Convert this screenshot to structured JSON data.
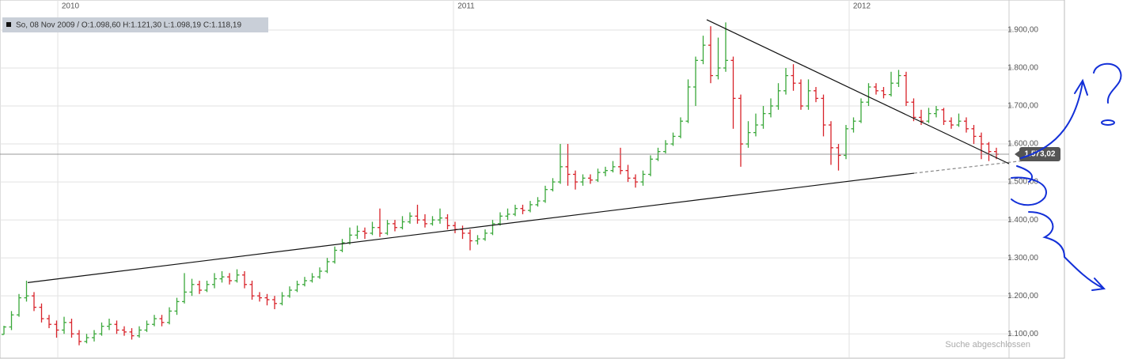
{
  "chart_data": {
    "type": "ohlc",
    "info": "So, 08 Nov 2009 / O:1.098,60 H:1.121,30 L:1.098,19 C:1.118,19",
    "status": "Suche abgeschlossen",
    "up_color": "#3aa83a",
    "down_color": "#d8222a",
    "xlim": [
      2009.854,
      2012.404
    ],
    "xticks": [
      2010,
      2011,
      2012
    ],
    "ylim": [
      1038,
      1979
    ],
    "yticks": [
      {
        "value": 1100,
        "label": "1.100,00"
      },
      {
        "value": 1200,
        "label": "1.200,00"
      },
      {
        "value": 1300,
        "label": "1.300,00"
      },
      {
        "value": 1400,
        "label": "1.400,00"
      },
      {
        "value": 1500,
        "label": "1.500,00"
      },
      {
        "value": 1600,
        "label": "1.600,00"
      },
      {
        "value": 1700,
        "label": "1.700,00"
      },
      {
        "value": 1800,
        "label": "1.800,00"
      },
      {
        "value": 1900,
        "label": "1.900,00"
      }
    ],
    "grid": true,
    "last_value": 1573.02,
    "last_label": "1.573,02",
    "x": [
      2009.864,
      2009.883,
      2009.902,
      2009.921,
      2009.94,
      2009.959,
      2009.978,
      2009.997,
      2010.016,
      2010.035,
      2010.054,
      2010.073,
      2010.092,
      2010.111,
      2010.13,
      2010.149,
      2010.168,
      2010.187,
      2010.206,
      2010.225,
      2010.244,
      2010.263,
      2010.282,
      2010.301,
      2010.32,
      2010.339,
      2010.358,
      2010.377,
      2010.396,
      2010.415,
      2010.434,
      2010.453,
      2010.472,
      2010.491,
      2010.51,
      2010.529,
      2010.548,
      2010.567,
      2010.586,
      2010.605,
      2010.624,
      2010.643,
      2010.662,
      2010.681,
      2010.7,
      2010.719,
      2010.738,
      2010.757,
      2010.776,
      2010.795,
      2010.814,
      2010.833,
      2010.852,
      2010.871,
      2010.89,
      2010.909,
      2010.928,
      2010.947,
      2010.966,
      2010.985,
      2011.004,
      2011.023,
      2011.042,
      2011.061,
      2011.08,
      2011.099,
      2011.118,
      2011.137,
      2011.156,
      2011.175,
      2011.194,
      2011.213,
      2011.232,
      2011.251,
      2011.27,
      2011.289,
      2011.308,
      2011.327,
      2011.346,
      2011.365,
      2011.384,
      2011.403,
      2011.422,
      2011.441,
      2011.46,
      2011.479,
      2011.498,
      2011.517,
      2011.536,
      2011.555,
      2011.574,
      2011.593,
      2011.612,
      2011.631,
      2011.65,
      2011.669,
      2011.688,
      2011.707,
      2011.726,
      2011.745,
      2011.764,
      2011.783,
      2011.802,
      2011.821,
      2011.84,
      2011.859,
      2011.878,
      2011.897,
      2011.916,
      2011.935,
      2011.954,
      2011.973,
      2011.992,
      2012.011,
      2012.03,
      2012.049,
      2012.068,
      2012.087,
      2012.106,
      2012.125,
      2012.144,
      2012.163,
      2012.182,
      2012.201,
      2012.22,
      2012.239,
      2012.258,
      2012.277,
      2012.296,
      2012.315,
      2012.334,
      2012.353,
      2012.372
    ],
    "open": [
      1098.6,
      1118.19,
      1150,
      1195,
      1200,
      1170,
      1140,
      1125,
      1110,
      1130,
      1100,
      1080,
      1090,
      1100,
      1120,
      1125,
      1110,
      1105,
      1095,
      1110,
      1125,
      1140,
      1130,
      1160,
      1185,
      1210,
      1230,
      1215,
      1230,
      1245,
      1250,
      1240,
      1255,
      1230,
      1200,
      1195,
      1190,
      1180,
      1200,
      1215,
      1230,
      1240,
      1250,
      1265,
      1290,
      1320,
      1340,
      1360,
      1370,
      1365,
      1380,
      1365,
      1390,
      1380,
      1395,
      1410,
      1400,
      1390,
      1400,
      1405,
      1385,
      1375,
      1365,
      1345,
      1350,
      1365,
      1390,
      1410,
      1415,
      1430,
      1425,
      1440,
      1450,
      1480,
      1500,
      1540,
      1520,
      1500,
      1510,
      1505,
      1525,
      1530,
      1540,
      1530,
      1510,
      1500,
      1520,
      1560,
      1580,
      1600,
      1620,
      1660,
      1750,
      1820,
      1860,
      1780,
      1800,
      1820,
      1720,
      1600,
      1630,
      1650,
      1680,
      1700,
      1740,
      1780,
      1760,
      1700,
      1740,
      1720,
      1650,
      1590,
      1570,
      1640,
      1660,
      1710,
      1750,
      1740,
      1730,
      1760,
      1780,
      1710,
      1670,
      1660,
      1680,
      1690,
      1660,
      1650,
      1660,
      1640,
      1620,
      1600,
      1580
    ],
    "high": [
      1121.3,
      1160,
      1205,
      1240,
      1210,
      1180,
      1150,
      1135,
      1145,
      1140,
      1110,
      1100,
      1110,
      1130,
      1140,
      1135,
      1120,
      1115,
      1120,
      1135,
      1150,
      1150,
      1170,
      1195,
      1260,
      1245,
      1240,
      1240,
      1260,
      1265,
      1260,
      1270,
      1265,
      1240,
      1210,
      1205,
      1200,
      1210,
      1225,
      1240,
      1250,
      1260,
      1275,
      1300,
      1330,
      1350,
      1380,
      1385,
      1380,
      1395,
      1430,
      1400,
      1400,
      1410,
      1420,
      1440,
      1415,
      1410,
      1430,
      1415,
      1395,
      1385,
      1375,
      1360,
      1375,
      1400,
      1420,
      1430,
      1440,
      1440,
      1450,
      1460,
      1490,
      1510,
      1600,
      1600,
      1530,
      1520,
      1520,
      1535,
      1540,
      1555,
      1590,
      1545,
      1520,
      1530,
      1570,
      1590,
      1610,
      1630,
      1670,
      1770,
      1830,
      1885,
      1910,
      1880,
      1920,
      1830,
      1730,
      1660,
      1680,
      1700,
      1720,
      1760,
      1800,
      1810,
      1770,
      1770,
      1750,
      1730,
      1660,
      1600,
      1650,
      1670,
      1720,
      1760,
      1760,
      1750,
      1790,
      1795,
      1790,
      1720,
      1690,
      1695,
      1700,
      1695,
      1670,
      1680,
      1670,
      1650,
      1630,
      1605,
      1590
    ],
    "low": [
      1098.19,
      1110,
      1145,
      1185,
      1160,
      1130,
      1115,
      1090,
      1100,
      1090,
      1070,
      1075,
      1080,
      1095,
      1110,
      1100,
      1095,
      1085,
      1090,
      1105,
      1120,
      1120,
      1125,
      1150,
      1180,
      1200,
      1205,
      1210,
      1220,
      1235,
      1230,
      1235,
      1220,
      1190,
      1185,
      1175,
      1165,
      1175,
      1195,
      1210,
      1225,
      1235,
      1245,
      1260,
      1285,
      1315,
      1335,
      1350,
      1350,
      1360,
      1355,
      1360,
      1370,
      1375,
      1390,
      1390,
      1380,
      1385,
      1390,
      1375,
      1365,
      1350,
      1320,
      1335,
      1345,
      1360,
      1385,
      1400,
      1410,
      1415,
      1420,
      1435,
      1445,
      1475,
      1495,
      1490,
      1480,
      1490,
      1495,
      1500,
      1515,
      1525,
      1520,
      1500,
      1485,
      1490,
      1515,
      1555,
      1575,
      1595,
      1615,
      1655,
      1700,
      1810,
      1760,
      1770,
      1790,
      1640,
      1540,
      1590,
      1620,
      1640,
      1670,
      1690,
      1730,
      1740,
      1690,
      1690,
      1710,
      1620,
      1545,
      1530,
      1560,
      1630,
      1655,
      1700,
      1730,
      1720,
      1725,
      1750,
      1700,
      1660,
      1650,
      1655,
      1670,
      1650,
      1640,
      1645,
      1630,
      1600,
      1560,
      1555,
      1560
    ],
    "close": [
      1118.19,
      1150,
      1195,
      1200,
      1170,
      1140,
      1125,
      1110,
      1130,
      1100,
      1080,
      1090,
      1100,
      1120,
      1125,
      1110,
      1105,
      1095,
      1110,
      1125,
      1140,
      1130,
      1160,
      1185,
      1210,
      1230,
      1215,
      1230,
      1245,
      1250,
      1240,
      1255,
      1230,
      1200,
      1195,
      1190,
      1180,
      1200,
      1215,
      1230,
      1240,
      1250,
      1265,
      1290,
      1320,
      1340,
      1360,
      1370,
      1365,
      1380,
      1365,
      1390,
      1380,
      1395,
      1410,
      1400,
      1390,
      1400,
      1405,
      1385,
      1375,
      1365,
      1345,
      1350,
      1365,
      1390,
      1410,
      1415,
      1430,
      1425,
      1440,
      1450,
      1480,
      1500,
      1540,
      1520,
      1500,
      1510,
      1505,
      1525,
      1530,
      1540,
      1530,
      1510,
      1500,
      1520,
      1560,
      1580,
      1600,
      1620,
      1660,
      1750,
      1820,
      1860,
      1780,
      1800,
      1820,
      1720,
      1600,
      1630,
      1650,
      1680,
      1700,
      1740,
      1780,
      1760,
      1700,
      1740,
      1720,
      1650,
      1590,
      1570,
      1640,
      1660,
      1710,
      1750,
      1740,
      1730,
      1760,
      1780,
      1710,
      1670,
      1660,
      1680,
      1690,
      1660,
      1650,
      1660,
      1640,
      1620,
      1600,
      1580,
      1573.02
    ],
    "trendlines": [
      {
        "x": [
          2009.924,
          2012.164
        ],
        "y": [
          1235,
          1523
        ],
        "dashed": false
      },
      {
        "x": [
          2012.164,
          2012.534
        ],
        "y": [
          1523,
          1567
        ],
        "dashed": true
      },
      {
        "x": [
          2011.64,
          2012.404
        ],
        "y": [
          1927,
          1548
        ],
        "dashed": false
      }
    ]
  }
}
